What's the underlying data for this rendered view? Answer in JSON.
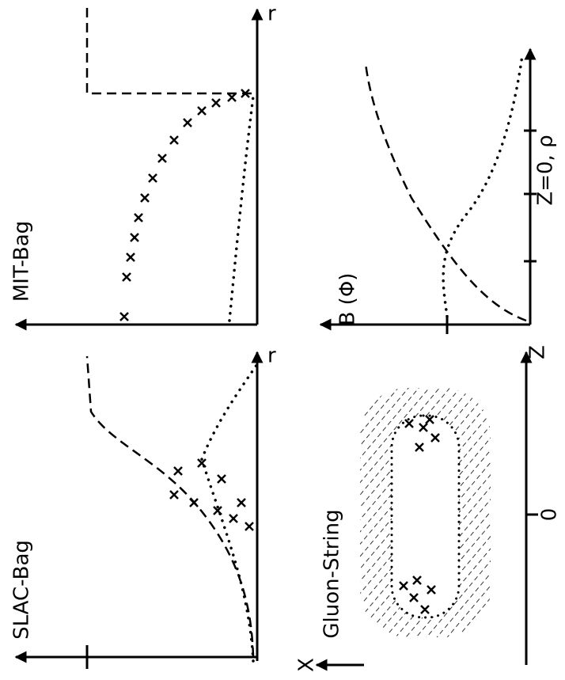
{
  "panels": [
    {
      "title": "SLAC-Bag",
      "x_axis": "r"
    },
    {
      "title": "MIT-Bag",
      "x_axis": "r"
    },
    {
      "title": "Gluon-String",
      "y_axis": "X",
      "x_axis": "Z",
      "tick": "0"
    },
    {
      "title": "B (Φ)",
      "x_axis": "Z=0, ρ"
    }
  ]
}
